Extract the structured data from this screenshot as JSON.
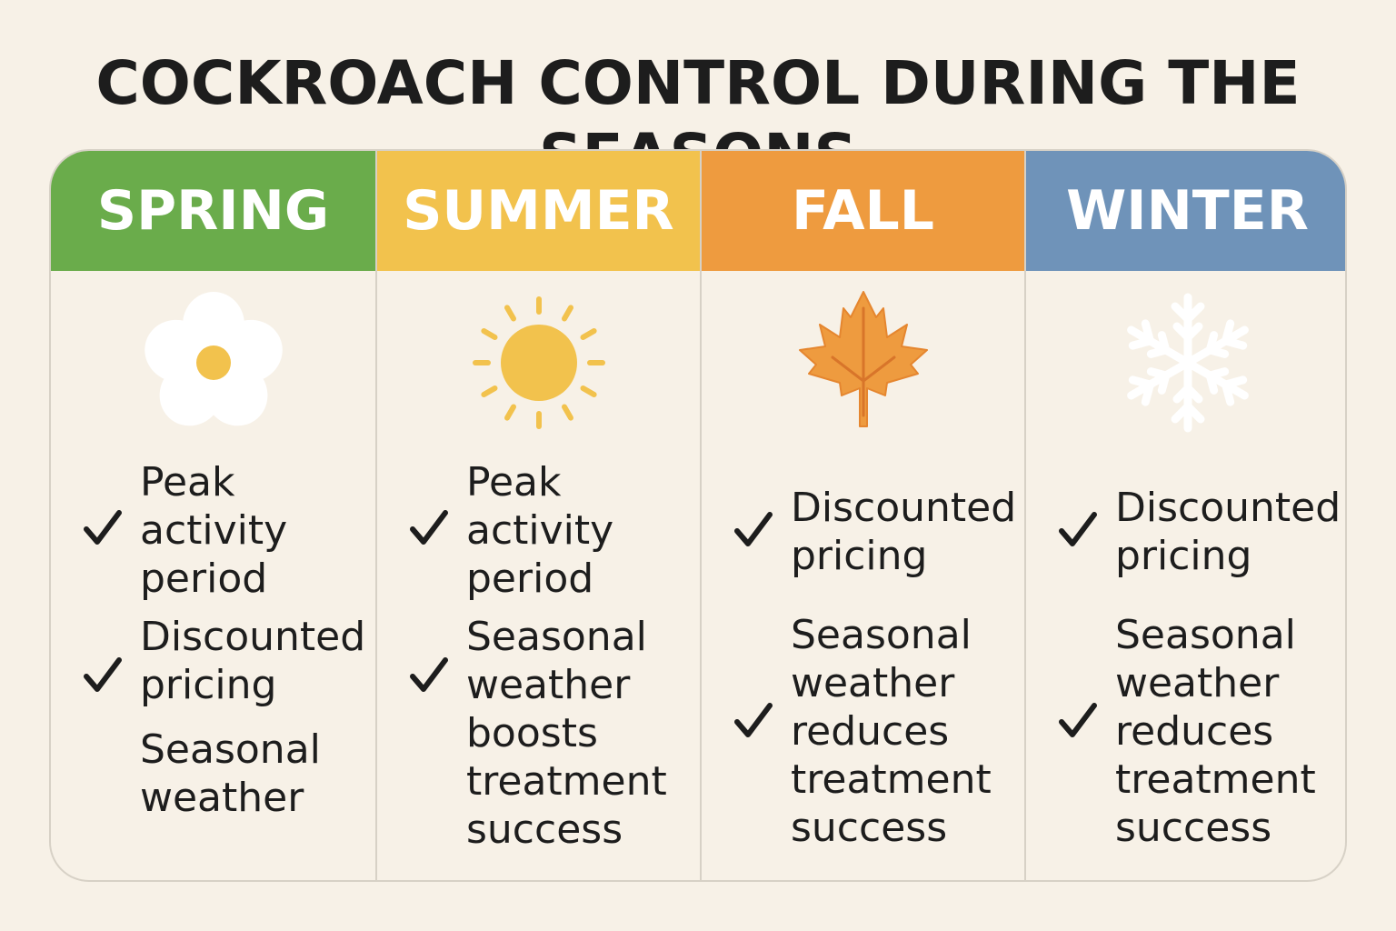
{
  "title": "COCKROACH CONTROL DURING THE SEASONS",
  "colors": {
    "background": "#f7f1e7",
    "spring": "#6aac4b",
    "summer": "#f2c24d",
    "fall": "#ee9b3f",
    "winter": "#6f93b9",
    "text": "#1d1d1d"
  },
  "seasons": [
    {
      "name": "SPRING",
      "icon": "flower-icon",
      "features": [
        {
          "checked": true,
          "text": "Peak\nactivity\nperiod"
        },
        {
          "checked": true,
          "text": "Discounted\npricing"
        },
        {
          "checked": false,
          "text": "Seasonal\nweather"
        }
      ]
    },
    {
      "name": "SUMMER",
      "icon": "sun-icon",
      "features": [
        {
          "checked": true,
          "text": "Peak\nactivity\nperiod"
        },
        {
          "checked": true,
          "text": "Seasonal\nweather\nboosts\ntreatment\nsuccess"
        }
      ]
    },
    {
      "name": "FALL",
      "icon": "maple-leaf-icon",
      "features": [
        {
          "checked": true,
          "text": "Discounted\npricing"
        },
        {
          "checked": true,
          "text": "Seasonal\nweather\nreduces\ntreatment\nsuccess"
        }
      ]
    },
    {
      "name": "WINTER",
      "icon": "snowflake-icon",
      "features": [
        {
          "checked": true,
          "text": "Discounted\npricing"
        },
        {
          "checked": true,
          "text": "Seasonal\nweather\nreduces\ntreatment\nsuccess"
        }
      ]
    }
  ]
}
